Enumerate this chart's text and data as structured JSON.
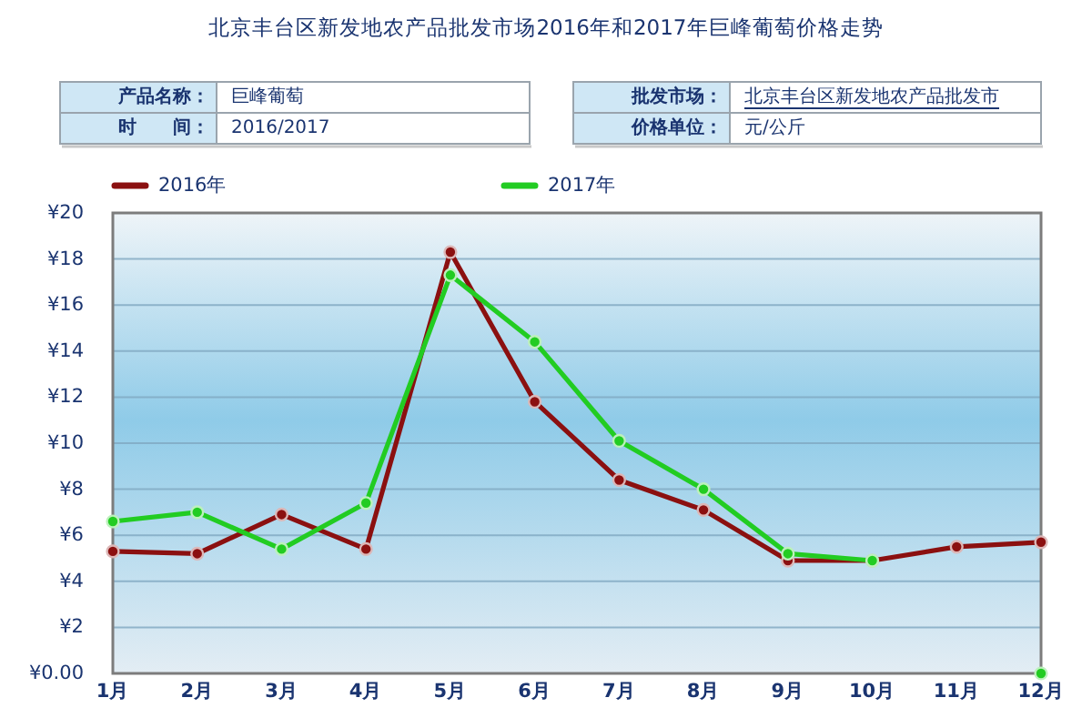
{
  "chart_data": {
    "type": "line",
    "title": "北京丰台区新发地农产品批发市场2016年和2017年巨峰葡萄价格走势",
    "annotations": [
      "产品名称：",
      "巨峰葡萄",
      "时　　间：",
      "2016/2017",
      "批发市场：",
      "北京丰台区新发地农产品批发市",
      "价格单位：",
      "元/公斤"
    ],
    "categories": [
      "1月",
      "2月",
      "3月",
      "4月",
      "5月",
      "6月",
      "7月",
      "8月",
      "9月",
      "10月",
      "11月",
      "12月"
    ],
    "series": [
      {
        "name": "2016年",
        "color": "#8b1010",
        "values": [
          5.3,
          5.2,
          6.9,
          5.4,
          18.3,
          11.8,
          8.4,
          7.1,
          4.9,
          4.9,
          5.5,
          5.7
        ]
      },
      {
        "name": "2017年",
        "color": "#22cc22",
        "values": [
          6.6,
          7.0,
          5.4,
          7.4,
          17.3,
          14.4,
          10.1,
          8.0,
          5.2,
          4.9,
          null,
          0
        ]
      }
    ],
    "ylim": [
      0,
      20
    ],
    "yticks": [
      {
        "value": 0,
        "label": "¥0.00"
      },
      {
        "value": 2,
        "label": "¥2"
      },
      {
        "value": 4,
        "label": "¥4"
      },
      {
        "value": 6,
        "label": "¥6"
      },
      {
        "value": 8,
        "label": "¥8"
      },
      {
        "value": 10,
        "label": "¥10"
      },
      {
        "value": 12,
        "label": "¥12"
      },
      {
        "value": 14,
        "label": "¥14"
      },
      {
        "value": 16,
        "label": "¥16"
      },
      {
        "value": 18,
        "label": "¥18"
      },
      {
        "value": 20,
        "label": "¥20"
      }
    ],
    "grid": "y",
    "legend": "top",
    "marker": "circle",
    "line_style": "solid"
  }
}
